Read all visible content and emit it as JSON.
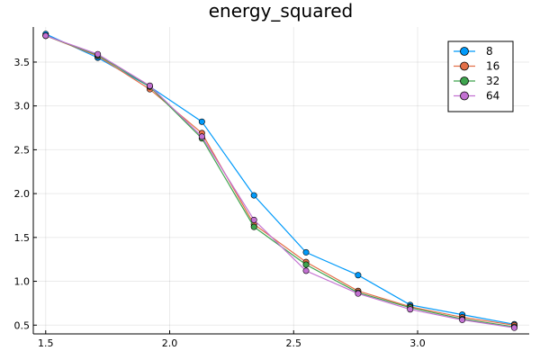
{
  "chart_data": {
    "type": "line",
    "title": "energy_squared",
    "xlabel": "",
    "ylabel": "",
    "xlim": [
      1.45,
      3.45
    ],
    "ylim": [
      0.4,
      3.9
    ],
    "xticks": [
      1.5,
      2.0,
      2.5,
      3.0
    ],
    "xtick_labels": [
      "1.5",
      "2.0",
      "2.5",
      "3.0"
    ],
    "yticks": [
      0.5,
      1.0,
      1.5,
      2.0,
      2.5,
      3.0,
      3.5
    ],
    "ytick_labels": [
      "0.5",
      "1.0",
      "1.5",
      "2.0",
      "2.5",
      "3.0",
      "3.5"
    ],
    "grid": true,
    "legend_position": "top-right",
    "x": [
      1.5,
      1.71,
      1.92,
      2.13,
      2.34,
      2.55,
      2.76,
      2.97,
      3.18,
      3.39
    ],
    "series": [
      {
        "name": "8",
        "color": "#009AFA",
        "values": [
          3.82,
          3.55,
          3.22,
          2.82,
          1.98,
          1.33,
          1.07,
          0.73,
          0.62,
          0.51
        ]
      },
      {
        "name": "16",
        "color": "#E36F47",
        "values": [
          3.8,
          3.57,
          3.19,
          2.69,
          1.65,
          1.22,
          0.89,
          0.71,
          0.59,
          0.5
        ]
      },
      {
        "name": "32",
        "color": "#3EA44E",
        "values": [
          3.8,
          3.58,
          3.22,
          2.63,
          1.62,
          1.19,
          0.87,
          0.7,
          0.57,
          0.48
        ]
      },
      {
        "name": "64",
        "color": "#C371D2",
        "values": [
          3.8,
          3.59,
          3.23,
          2.65,
          1.7,
          1.12,
          0.86,
          0.68,
          0.56,
          0.47
        ]
      }
    ]
  }
}
